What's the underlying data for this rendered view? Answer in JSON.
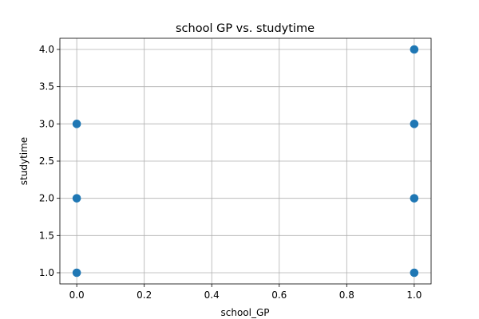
{
  "chart_data": {
    "type": "scatter",
    "title": "school GP vs. studytime",
    "xlabel": "school_GP",
    "ylabel": "studytime",
    "xlim": [
      -0.05,
      1.05
    ],
    "ylim": [
      0.85,
      4.15
    ],
    "xticks": [
      0.0,
      0.2,
      0.4,
      0.6,
      0.8,
      1.0
    ],
    "xtick_labels": [
      "0.0",
      "0.2",
      "0.4",
      "0.6",
      "0.8",
      "1.0"
    ],
    "yticks": [
      1.0,
      1.5,
      2.0,
      2.5,
      3.0,
      3.5,
      4.0
    ],
    "ytick_labels": [
      "1.0",
      "1.5",
      "2.0",
      "2.5",
      "3.0",
      "3.5",
      "4.0"
    ],
    "grid": true,
    "marker_color": "#1f77b4",
    "points": [
      {
        "x": 0,
        "y": 1
      },
      {
        "x": 0,
        "y": 2
      },
      {
        "x": 0,
        "y": 3
      },
      {
        "x": 1,
        "y": 1
      },
      {
        "x": 1,
        "y": 2
      },
      {
        "x": 1,
        "y": 3
      },
      {
        "x": 1,
        "y": 4
      }
    ]
  }
}
